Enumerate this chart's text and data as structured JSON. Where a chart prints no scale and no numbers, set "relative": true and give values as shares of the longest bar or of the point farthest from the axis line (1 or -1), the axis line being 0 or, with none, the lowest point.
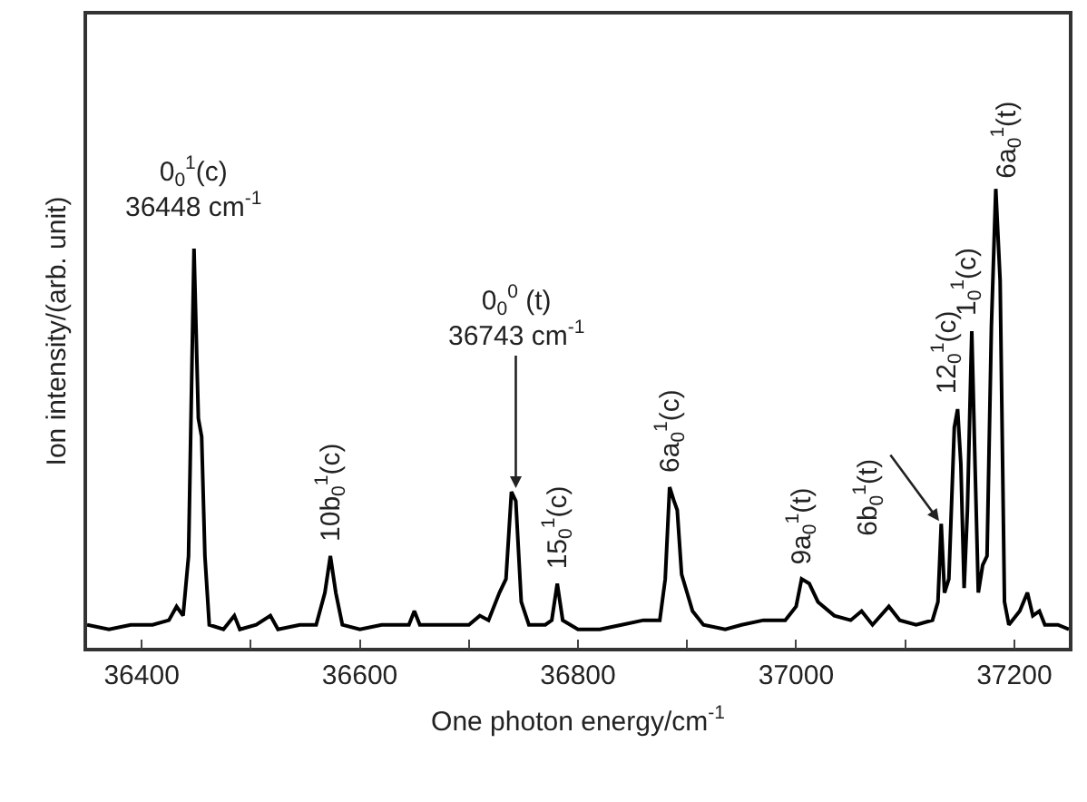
{
  "chart_data": {
    "type": "line",
    "relative": true,
    "xlabel": "One photon energy/cm$^{-1}$",
    "ylabel": "Ion intensity/(arb. unit)",
    "xlim": [
      36350,
      37250
    ],
    "xticks": [
      36400,
      {
        "value": 36500,
        "label": null
      },
      36600,
      {
        "value": 36700,
        "label": null
      },
      36800,
      {
        "value": 36900,
        "label": null
      },
      37000,
      {
        "value": 37100,
        "label": null
      },
      37200
    ],
    "series": [
      {
        "color": "#000000",
        "x": [
          36350,
          36370,
          36390,
          36410,
          36425,
          36432,
          36438,
          36443,
          36448,
          36452,
          36455,
          36458,
          36462,
          36475,
          36485,
          36490,
          36505,
          36518,
          36525,
          36545,
          36560,
          36568,
          36573,
          36578,
          36584,
          36600,
          36620,
          36645,
          36650,
          36655,
          36680,
          36700,
          36710,
          36718,
          36728,
          36734,
          36739,
          36743,
          36748,
          36755,
          36770,
          36776,
          36781,
          36786,
          36800,
          36820,
          36840,
          36860,
          36875,
          36880,
          36884,
          36888,
          36891,
          36895,
          36900,
          36905,
          36915,
          36935,
          36950,
          36970,
          36990,
          37000,
          37005,
          37012,
          37020,
          37035,
          37050,
          37060,
          37070,
          37085,
          37095,
          37110,
          37125,
          37130,
          37133,
          37136,
          37140,
          37145,
          37148,
          37151,
          37154,
          37157,
          37161,
          37164,
          37167,
          37171,
          37175,
          37179,
          37183,
          37187,
          37191,
          37195,
          37205,
          37212,
          37217,
          37223,
          37228,
          37240,
          37250
        ],
        "values": [
          0.05,
          0.04,
          0.05,
          0.05,
          0.06,
          0.09,
          0.07,
          0.2,
          0.87,
          0.5,
          0.46,
          0.2,
          0.05,
          0.04,
          0.07,
          0.04,
          0.05,
          0.07,
          0.04,
          0.05,
          0.05,
          0.12,
          0.2,
          0.12,
          0.05,
          0.04,
          0.05,
          0.05,
          0.08,
          0.05,
          0.05,
          0.05,
          0.07,
          0.06,
          0.12,
          0.15,
          0.34,
          0.32,
          0.1,
          0.05,
          0.05,
          0.06,
          0.14,
          0.06,
          0.04,
          0.04,
          0.05,
          0.06,
          0.06,
          0.15,
          0.35,
          0.32,
          0.3,
          0.16,
          0.12,
          0.08,
          0.05,
          0.04,
          0.05,
          0.06,
          0.06,
          0.09,
          0.15,
          0.14,
          0.1,
          0.07,
          0.06,
          0.08,
          0.05,
          0.09,
          0.06,
          0.05,
          0.06,
          0.1,
          0.27,
          0.12,
          0.15,
          0.48,
          0.52,
          0.4,
          0.13,
          0.3,
          0.69,
          0.4,
          0.12,
          0.18,
          0.2,
          0.7,
          1,
          0.8,
          0.1,
          0.05,
          0.08,
          0.12,
          0.07,
          0.08,
          0.05,
          0.05,
          0.04
        ]
      }
    ],
    "annotations": [
      {
        "text": "0$_{0}$$^{1}$(c)\n36448 cm$^{-1}$",
        "x": 36448,
        "y": 0.87
      },
      {
        "text": "0$_{0}$$^{0}$ (t)\n36743 cm$^{-1}$",
        "x": 36743,
        "y": 0.34
      },
      {
        "text": "10b$_{0}$$^{1}$(c)",
        "x": 36573,
        "y": 0.2
      },
      {
        "text": "15$_{0}$$^{1}$(c)",
        "x": 36781,
        "y": 0.14
      },
      {
        "text": "6a$_{0}$$^{1}$(c)",
        "x": 36884,
        "y": 0.35
      },
      {
        "text": "9a$_{0}$$^{1}$(t)",
        "x": 37005,
        "y": 0.15
      },
      {
        "text": "6b$_{0}$$^{1}$(t)",
        "x": 37133,
        "y": 0.27
      },
      {
        "text": "12$_{0}$$^{1}$(c)",
        "x": 37148,
        "y": 0.52
      },
      {
        "text": "1$_{0}$$^{1}$(c)",
        "x": 37161,
        "y": 0.69
      },
      {
        "text": "6a$_{0}$$^{1}$(t)",
        "x": 37183,
        "y": 1
      }
    ]
  }
}
